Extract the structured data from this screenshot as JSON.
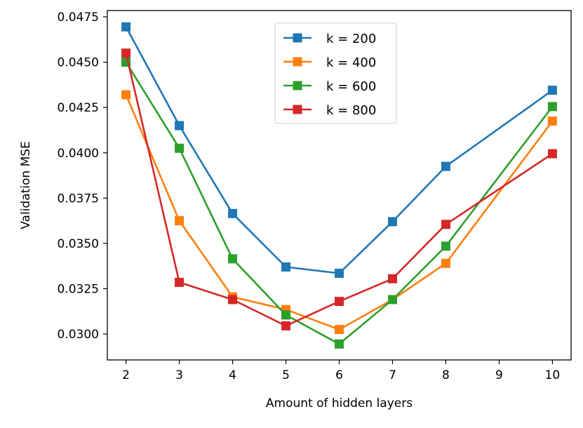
{
  "chart_data": {
    "type": "line",
    "title": "",
    "xlabel": "Amount of hidden layers",
    "ylabel": "Validation MSE",
    "x": [
      2,
      3,
      4,
      5,
      6,
      7,
      8,
      10
    ],
    "xticks": [
      "2",
      "3",
      "4",
      "5",
      "6",
      "7",
      "8",
      "9",
      "10"
    ],
    "xtick_values": [
      2,
      3,
      4,
      5,
      6,
      7,
      8,
      9,
      10
    ],
    "yticks": [
      "0.0300",
      "0.0325",
      "0.0350",
      "0.0375",
      "0.0400",
      "0.0425",
      "0.0450",
      "0.0475"
    ],
    "ytick_values": [
      0.03,
      0.0325,
      0.035,
      0.0375,
      0.04,
      0.0425,
      0.045,
      0.0475
    ],
    "xlim": [
      1.65,
      10.35
    ],
    "ylim": [
      0.02857,
      0.04785
    ],
    "grid": false,
    "legend_position": "upper-center",
    "marker": "square",
    "series": [
      {
        "name": "k = 200",
        "color": "#1f77b4",
        "values": [
          0.04695,
          0.0415,
          0.03665,
          0.0337,
          0.03335,
          0.0362,
          0.03925,
          0.04345
        ]
      },
      {
        "name": "k = 400",
        "color": "#ff7f0e",
        "values": [
          0.0432,
          0.03625,
          0.03205,
          0.03135,
          0.03025,
          0.0319,
          0.0339,
          0.04175
        ]
      },
      {
        "name": "k = 600",
        "color": "#2ca02c",
        "values": [
          0.045,
          0.04025,
          0.03415,
          0.03105,
          0.02945,
          0.0319,
          0.03485,
          0.04255
        ]
      },
      {
        "name": "k = 800",
        "color": "#d62728",
        "values": [
          0.0455,
          0.03285,
          0.0319,
          0.03045,
          0.0318,
          0.03305,
          0.03605,
          0.03995
        ]
      }
    ]
  }
}
